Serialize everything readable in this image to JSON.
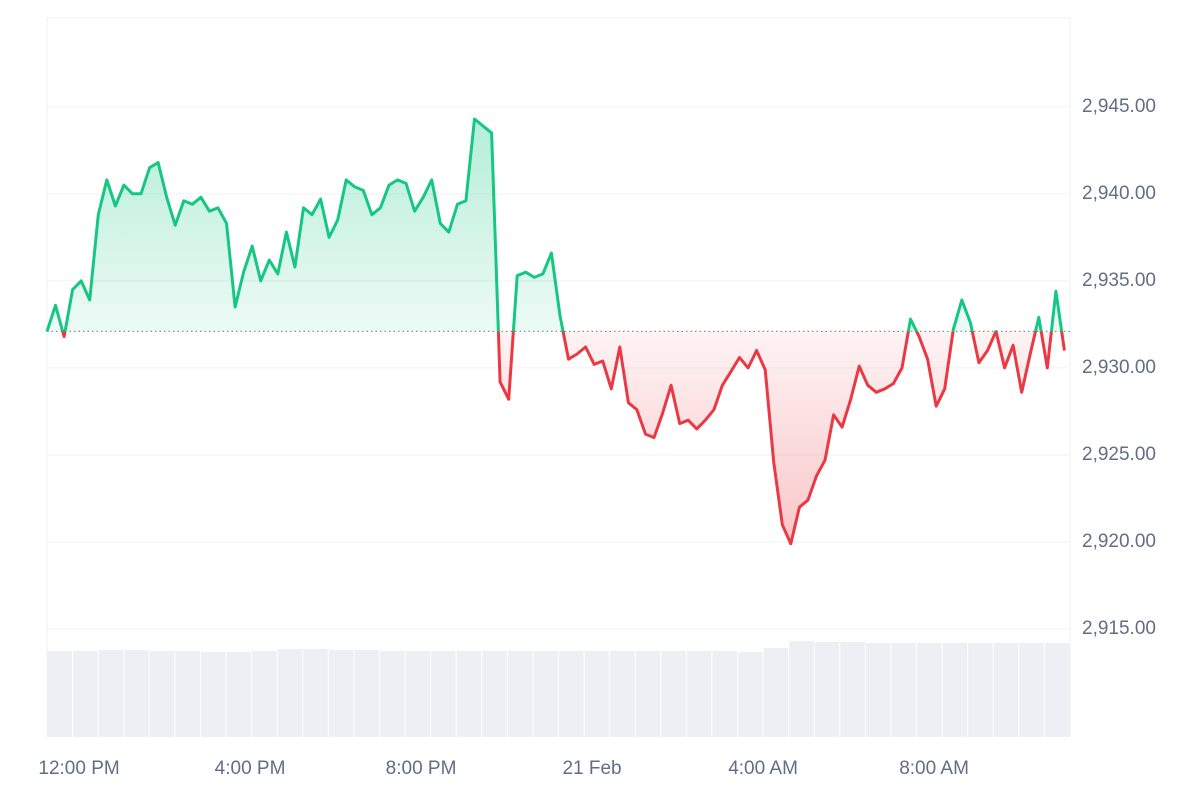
{
  "chart_data": {
    "type": "line",
    "x": [
      11.25,
      11.45,
      11.65,
      11.85,
      12.05,
      12.25,
      12.45,
      12.65,
      12.85,
      13.05,
      13.25,
      13.45,
      13.65,
      13.85,
      14.05,
      14.25,
      14.45,
      14.65,
      14.85,
      15.05,
      15.25,
      15.45,
      15.65,
      15.85,
      16.05,
      16.25,
      16.45,
      16.65,
      16.85,
      17.05,
      17.25,
      17.45,
      17.65,
      17.85,
      18.05,
      18.25,
      18.45,
      18.65,
      18.85,
      19.05,
      19.25,
      19.45,
      19.65,
      19.85,
      20.05,
      20.25,
      20.45,
      20.65,
      20.85,
      21.05,
      21.25,
      21.45,
      21.65,
      21.85,
      22.05,
      22.25,
      22.45,
      22.65,
      22.85,
      23.05,
      23.25,
      23.45,
      23.65,
      23.85,
      24.05,
      24.25,
      24.45,
      24.65,
      24.85,
      25.05,
      25.25,
      25.45,
      25.65,
      25.85,
      26.05,
      26.25,
      26.45,
      26.65,
      26.85,
      27.05,
      27.25,
      27.45,
      27.65,
      27.85,
      28.05,
      28.25,
      28.45,
      28.65,
      28.85,
      29.05,
      29.25,
      29.45,
      29.65,
      29.85,
      30.05,
      30.25,
      30.45,
      30.65,
      30.85,
      31.05,
      31.25,
      31.45,
      31.65,
      31.85,
      32.05,
      32.25,
      32.45,
      32.65,
      32.85,
      33.05,
      33.25,
      33.45,
      33.65,
      33.85,
      34.05,
      34.25,
      34.45,
      34.65,
      34.85,
      35.05
    ],
    "series": [
      {
        "values": [
          2932.1,
          2933.6,
          2931.8,
          2934.5,
          2935.0,
          2933.9,
          2938.8,
          2940.8,
          2939.3,
          2940.5,
          2940.0,
          2940.0,
          2941.5,
          2941.8,
          2939.8,
          2938.2,
          2939.6,
          2939.4,
          2939.8,
          2939.0,
          2939.2,
          2938.3,
          2933.5,
          2935.5,
          2937.0,
          2935.0,
          2936.2,
          2935.4,
          2937.8,
          2935.8,
          2939.2,
          2938.8,
          2939.7,
          2937.5,
          2938.5,
          2940.8,
          2940.4,
          2940.2,
          2938.8,
          2939.2,
          2940.5,
          2940.8,
          2940.6,
          2939.0,
          2939.8,
          2940.8,
          2938.3,
          2937.8,
          2939.4,
          2939.6,
          2944.3,
          2943.9,
          2943.5,
          2929.2,
          2928.2,
          2935.3,
          2935.5,
          2935.2,
          2935.4,
          2936.6,
          2933.0,
          2930.5,
          2930.8,
          2931.2,
          2930.2,
          2930.4,
          2928.8,
          2931.2,
          2928.0,
          2927.6,
          2926.2,
          2926.0,
          2927.4,
          2929.0,
          2926.8,
          2927.0,
          2926.5,
          2927.0,
          2927.6,
          2929.0,
          2929.8,
          2930.6,
          2930.0,
          2931.0,
          2929.9,
          2924.6,
          2921.0,
          2919.9,
          2922.0,
          2922.4,
          2923.8,
          2924.7,
          2927.3,
          2926.6,
          2928.2,
          2930.1,
          2929.0,
          2928.6,
          2928.8,
          2929.1,
          2930.0,
          2932.8,
          2931.8,
          2930.5,
          2927.8,
          2928.8,
          2932.2,
          2933.9,
          2932.6,
          2930.3,
          2931.0,
          2932.1,
          2930.0,
          2931.3,
          2928.6,
          2930.8,
          2932.9,
          2930.0,
          2934.4,
          2931.0
        ]
      }
    ],
    "baseline": 2932.1,
    "up_color": "#16c784",
    "down_color": "#ea3943",
    "xlim": [
      11.25,
      35.18
    ],
    "xticks": [
      {
        "value": 12,
        "label": "12:00 PM"
      },
      {
        "value": 16,
        "label": "4:00 PM"
      },
      {
        "value": 20,
        "label": "8:00 PM"
      },
      {
        "value": 24,
        "label": "21 Feb"
      },
      {
        "value": 28,
        "label": "4:00 AM"
      },
      {
        "value": 32,
        "label": "8:00 AM"
      }
    ],
    "ylim": [
      2908.8,
      2950.1
    ],
    "yticks": [
      {
        "value": 2915,
        "label": "2,915.00"
      },
      {
        "value": 2920,
        "label": "2,920.00"
      },
      {
        "value": 2925,
        "label": "2,925.00"
      },
      {
        "value": 2930,
        "label": "2,930.00"
      },
      {
        "value": 2935,
        "label": "2,935.00"
      },
      {
        "value": 2940,
        "label": "2,940.00"
      },
      {
        "value": 2945,
        "label": "2,945.00"
      }
    ],
    "grid": true,
    "volume": {
      "color": "#eceff3",
      "ylim": [
        0,
        100
      ],
      "values": [
        86,
        86,
        87,
        87,
        86,
        86,
        85,
        85,
        86,
        88,
        88,
        87,
        87,
        86,
        86,
        86,
        86,
        86,
        86,
        86,
        86,
        86,
        86,
        86,
        86,
        86,
        86,
        85,
        89,
        96,
        95,
        95,
        94,
        94,
        94,
        94,
        94,
        94,
        94,
        94
      ]
    }
  }
}
